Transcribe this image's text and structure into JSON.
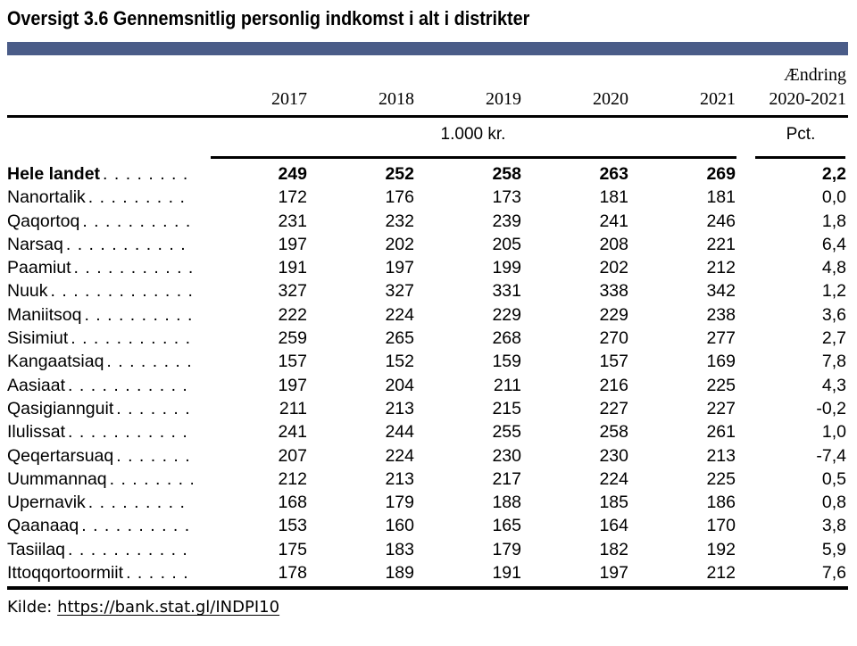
{
  "title": "Oversigt 3.6 Gennemsnitlig personlig indkomst i alt i distrikter",
  "colors": {
    "accent_bar": "#4a5c88"
  },
  "table": {
    "change_header_line1": "Ændring",
    "change_header_line2": "2020-2021",
    "year_headers": [
      "2017",
      "2018",
      "2019",
      "2020",
      "2021"
    ],
    "unit_years": "1.000 kr.",
    "unit_change": "Pct.",
    "rows": [
      {
        "label": "Hele landet",
        "values": [
          "249",
          "252",
          "258",
          "263",
          "269"
        ],
        "change": "2,2",
        "bold": true
      },
      {
        "label": "Nanortalik",
        "values": [
          "172",
          "176",
          "173",
          "181",
          "181"
        ],
        "change": "0,0"
      },
      {
        "label": "Qaqortoq",
        "values": [
          "231",
          "232",
          "239",
          "241",
          "246"
        ],
        "change": "1,8"
      },
      {
        "label": "Narsaq",
        "values": [
          "197",
          "202",
          "205",
          "208",
          "221"
        ],
        "change": "6,4"
      },
      {
        "label": "Paamiut",
        "values": [
          "191",
          "197",
          "199",
          "202",
          "212"
        ],
        "change": "4,8"
      },
      {
        "label": "Nuuk",
        "values": [
          "327",
          "327",
          "331",
          "338",
          "342"
        ],
        "change": "1,2"
      },
      {
        "label": "Maniitsoq",
        "values": [
          "222",
          "224",
          "229",
          "229",
          "238"
        ],
        "change": "3,6"
      },
      {
        "label": "Sisimiut",
        "values": [
          "259",
          "265",
          "268",
          "270",
          "277"
        ],
        "change": "2,7"
      },
      {
        "label": "Kangaatsiaq",
        "values": [
          "157",
          "152",
          "159",
          "157",
          "169"
        ],
        "change": "7,8"
      },
      {
        "label": "Aasiaat",
        "values": [
          "197",
          "204",
          "211",
          "216",
          "225"
        ],
        "change": "4,3"
      },
      {
        "label": "Qasigiannguit",
        "values": [
          "211",
          "213",
          "215",
          "227",
          "227"
        ],
        "change": "-0,2"
      },
      {
        "label": "Ilulissat",
        "values": [
          "241",
          "244",
          "255",
          "258",
          "261"
        ],
        "change": "1,0"
      },
      {
        "label": "Qeqertarsuaq",
        "values": [
          "207",
          "224",
          "230",
          "230",
          "213"
        ],
        "change": "-7,4"
      },
      {
        "label": "Uummannaq",
        "values": [
          "212",
          "213",
          "217",
          "224",
          "225"
        ],
        "change": "0,5"
      },
      {
        "label": "Upernavik",
        "values": [
          "168",
          "179",
          "188",
          "185",
          "186"
        ],
        "change": "0,8"
      },
      {
        "label": "Qaanaaq",
        "values": [
          "153",
          "160",
          "165",
          "164",
          "170"
        ],
        "change": "3,8"
      },
      {
        "label": "Tasiilaq",
        "values": [
          "175",
          "183",
          "179",
          "182",
          "192"
        ],
        "change": "5,9"
      },
      {
        "label": "Ittoqqortoormiit",
        "values": [
          "178",
          "189",
          "191",
          "197",
          "212"
        ],
        "change": "7,6"
      }
    ]
  },
  "footer": {
    "source_label": "Kilde:",
    "source_link": "https://bank.stat.gl/INDPI10"
  }
}
